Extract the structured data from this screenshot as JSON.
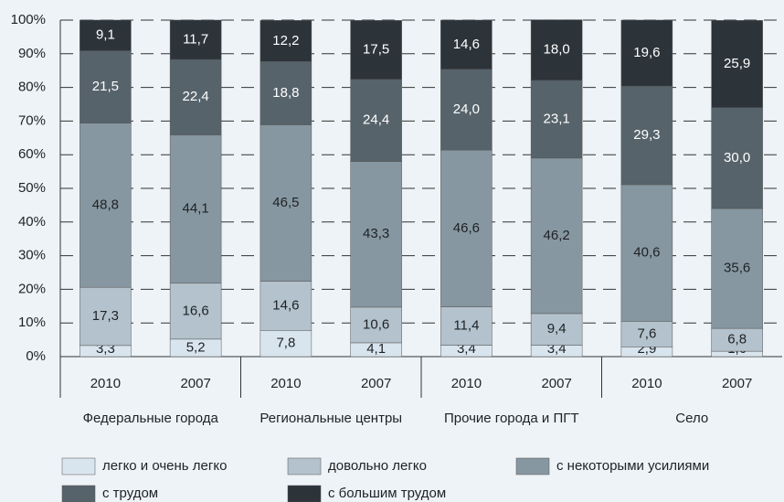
{
  "chart_data": {
    "type": "stacked_bar",
    "categories": [
      "2010",
      "2007",
      "2010",
      "2007",
      "2010",
      "2007",
      "2010",
      "2007"
    ],
    "groups": [
      "Федеральные города",
      "Региональные центры",
      "Прочие города и ПГТ",
      "Село"
    ],
    "series": [
      {
        "name": "легко и очень легко",
        "color": "#d9e5ee",
        "values": [
          3.3,
          5.2,
          7.8,
          4.1,
          3.4,
          3.4,
          2.9,
          1.6
        ],
        "value_labels": [
          "3,3",
          "5,2",
          "7,8",
          "4,1",
          "3,4",
          "3,4",
          "2,9",
          "1,6"
        ]
      },
      {
        "name": "довольно легко",
        "color": "#b3c2cc",
        "values": [
          17.3,
          16.6,
          14.6,
          10.6,
          11.4,
          9.4,
          7.6,
          6.8
        ],
        "value_labels": [
          "17,3",
          "16,6",
          "14,6",
          "10,6",
          "11,4",
          "9,4",
          "7,6",
          "6,8"
        ]
      },
      {
        "name": "с некоторыми усилиями",
        "color": "#8797a1",
        "values": [
          48.8,
          44.1,
          46.5,
          43.3,
          46.6,
          46.2,
          40.6,
          35.6
        ],
        "value_labels": [
          "48,8",
          "44,1",
          "46,5",
          "43,3",
          "46,6",
          "46,2",
          "40,6",
          "35,6"
        ]
      },
      {
        "name": "с трудом",
        "color": "#56636b",
        "values": [
          21.5,
          22.4,
          18.8,
          24.4,
          24.0,
          23.1,
          29.3,
          30.0
        ],
        "value_labels": [
          "21,5",
          "22,4",
          "18,8",
          "24,4",
          "24,0",
          "23,1",
          "29,3",
          "30,0"
        ]
      },
      {
        "name": "с большим трудом",
        "color": "#2c343a",
        "values": [
          9.1,
          11.7,
          12.2,
          17.5,
          14.6,
          18.0,
          19.6,
          25.9
        ],
        "value_labels": [
          "9,1",
          "11,7",
          "12,2",
          "17,5",
          "14,6",
          "18,0",
          "19,6",
          "25,9"
        ]
      }
    ],
    "ylim": [
      0,
      100
    ],
    "yticks": [
      {
        "value": 0,
        "label": "0%"
      },
      {
        "value": 10,
        "label": "10%"
      },
      {
        "value": 20,
        "label": "20%"
      },
      {
        "value": 30,
        "label": "30%"
      },
      {
        "value": 40,
        "label": "40%"
      },
      {
        "value": 50,
        "label": "50%"
      },
      {
        "value": 60,
        "label": "60%"
      },
      {
        "value": 70,
        "label": "70%"
      },
      {
        "value": 80,
        "label": "80%"
      },
      {
        "value": 90,
        "label": "90%"
      },
      {
        "value": 100,
        "label": "100%"
      }
    ],
    "grid": true
  }
}
